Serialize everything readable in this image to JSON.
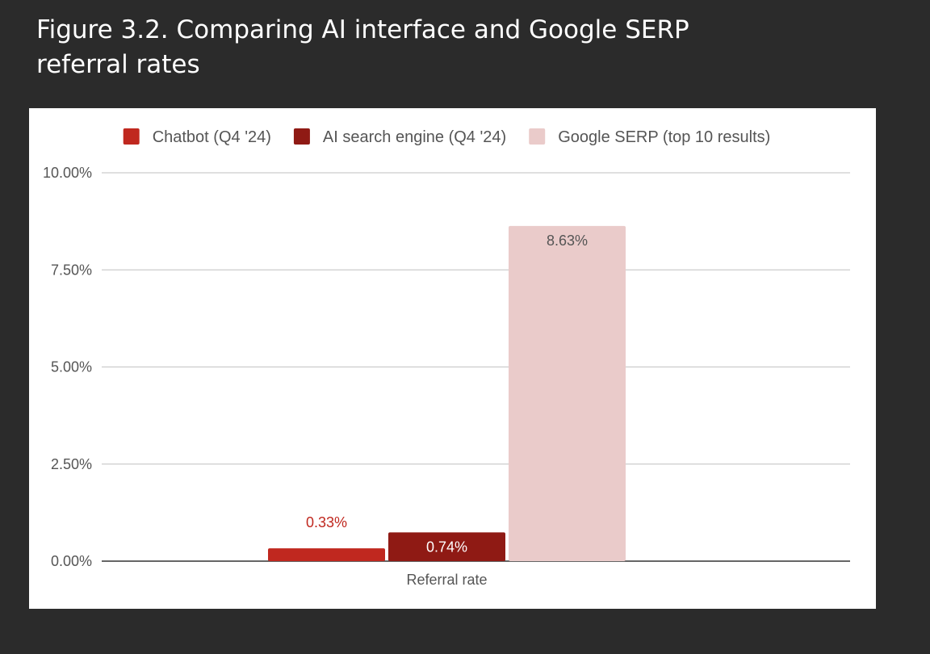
{
  "figure": {
    "title": "Figure 3.2. Comparing AI interface and Google SERP referral rates"
  },
  "colors": {
    "background": "#2b2b2b",
    "card": "#ffffff",
    "grid": "#cccccc",
    "baseline": "#333333",
    "tick_text": "#555555"
  },
  "chart_data": {
    "type": "bar",
    "title": "",
    "xlabel": "",
    "ylabel": "",
    "categories": [
      "Referral rate"
    ],
    "ylim": [
      0,
      10
    ],
    "yticks": [
      0,
      2.5,
      5,
      7.5,
      10
    ],
    "ytick_labels": [
      "0.00%",
      "2.50%",
      "5.00%",
      "7.50%",
      "10.00%"
    ],
    "grid": true,
    "legend_position": "top",
    "series": [
      {
        "name": "Chatbot (Q4 '24)",
        "values": [
          0.33
        ],
        "labels": [
          "0.33%"
        ],
        "color": "#c0281f",
        "label_color": "#c0281f",
        "label_placement": "above"
      },
      {
        "name": "AI search engine (Q4 '24)",
        "values": [
          0.74
        ],
        "labels": [
          "0.74%"
        ],
        "color": "#8f1a14",
        "label_color": "#ffffff",
        "label_placement": "inside"
      },
      {
        "name": "Google SERP (top 10 results)",
        "values": [
          8.63
        ],
        "labels": [
          "8.63%"
        ],
        "color": "#eacbca",
        "label_color": "#555555",
        "label_placement": "inside"
      }
    ]
  }
}
